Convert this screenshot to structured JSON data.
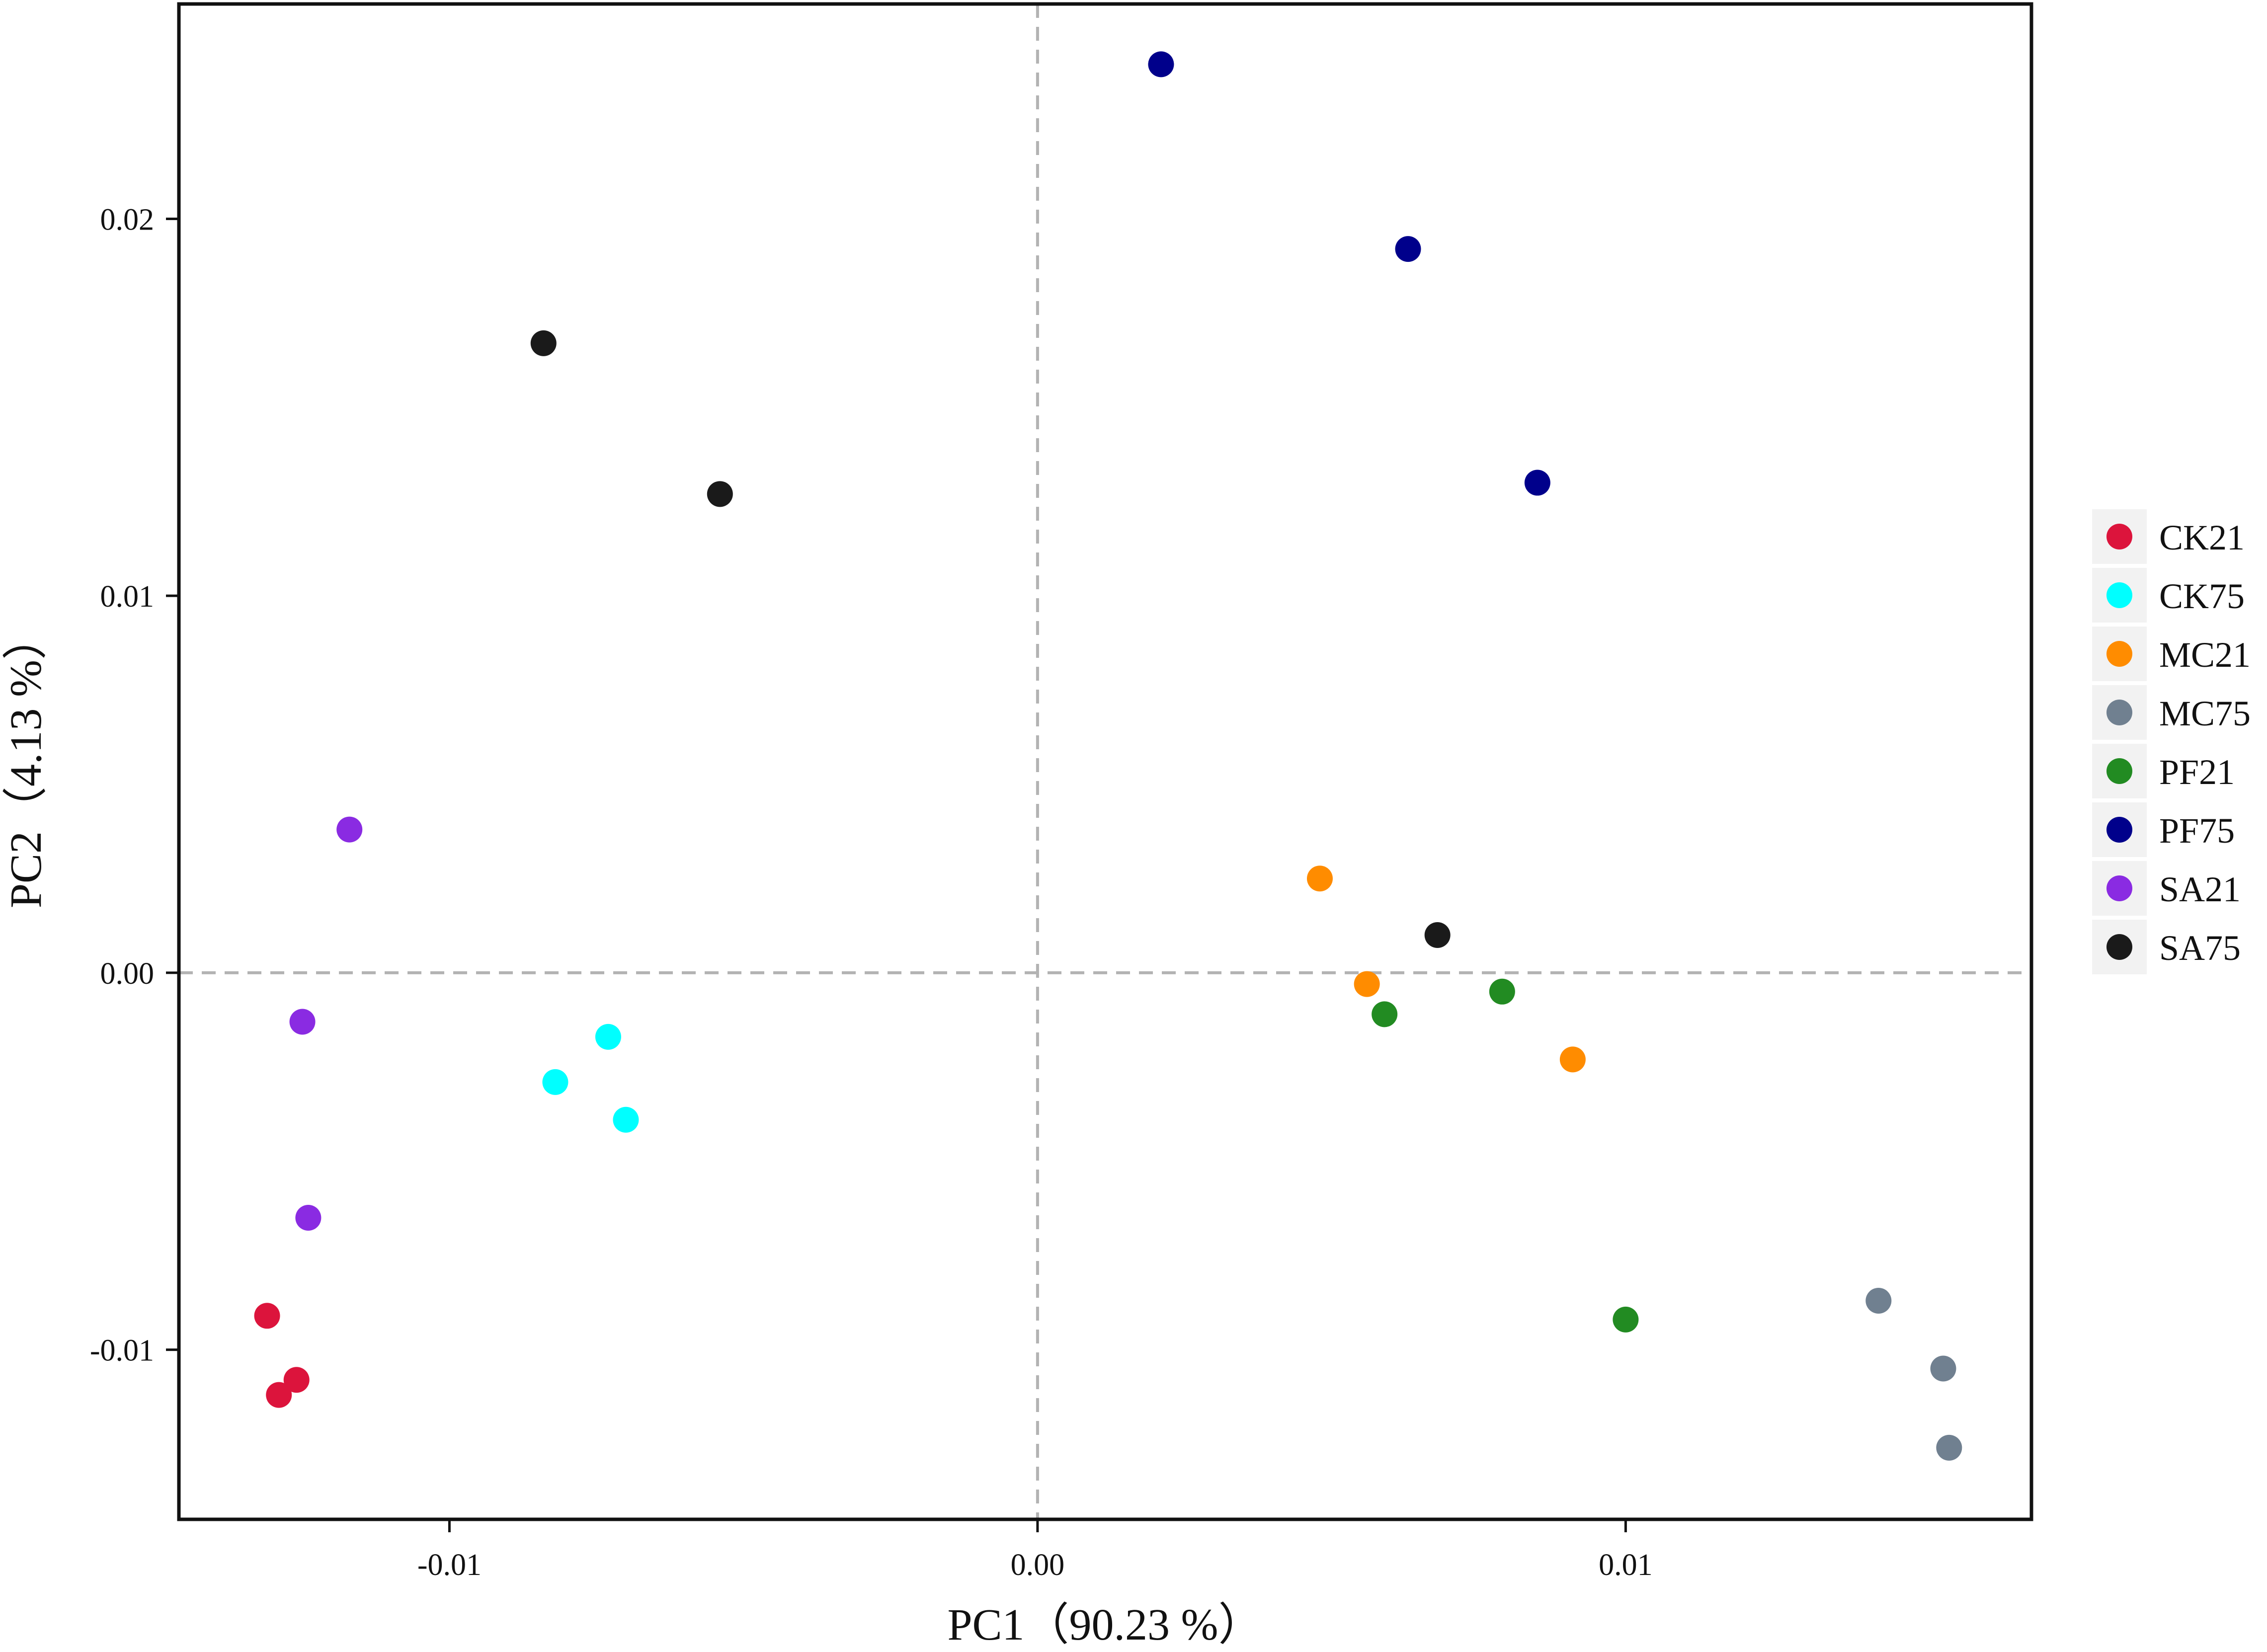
{
  "chart_data": {
    "type": "scatter",
    "title": "",
    "xlabel": "PC1（90.23 %）",
    "ylabel": "PC2（4.13 %）",
    "xlim": [
      -0.0146,
      0.0169
    ],
    "ylim": [
      -0.0145,
      0.0257
    ],
    "x_ticks": [
      -0.01,
      0.0,
      0.01
    ],
    "x_tick_labels": [
      "-0.01",
      "0.00",
      "0.01"
    ],
    "y_ticks": [
      -0.01,
      0.0,
      0.01,
      0.02
    ],
    "y_tick_labels": [
      "-0.01",
      "0.00",
      "0.01",
      "0.02"
    ],
    "reference_lines": {
      "x": 0,
      "y": 0,
      "style": "dashed"
    },
    "grid": false,
    "legend_position": "right",
    "series": [
      {
        "name": "CK21",
        "color": "#DC143C",
        "points": [
          [
            -0.0131,
            -0.0091
          ],
          [
            -0.0129,
            -0.0112
          ],
          [
            -0.0126,
            -0.0108
          ]
        ]
      },
      {
        "name": "CK75",
        "color": "#00FFFF",
        "points": [
          [
            -0.0073,
            -0.0017
          ],
          [
            -0.0082,
            -0.0029
          ],
          [
            -0.007,
            -0.0039
          ]
        ]
      },
      {
        "name": "MC21",
        "color": "#FF8C00",
        "points": [
          [
            0.0048,
            0.0025
          ],
          [
            0.0056,
            -0.0003
          ],
          [
            0.0091,
            -0.0023
          ]
        ]
      },
      {
        "name": "MC75",
        "color": "#708090",
        "points": [
          [
            0.0143,
            -0.0087
          ],
          [
            0.0154,
            -0.0105
          ],
          [
            0.0155,
            -0.0126
          ]
        ]
      },
      {
        "name": "PF21",
        "color": "#228B22",
        "points": [
          [
            0.0059,
            -0.0011
          ],
          [
            0.0079,
            -0.0005
          ],
          [
            0.01,
            -0.0092
          ]
        ]
      },
      {
        "name": "PF75",
        "color": "#00008B",
        "points": [
          [
            0.0021,
            0.0241
          ],
          [
            0.0063,
            0.0192
          ],
          [
            0.0085,
            0.013
          ]
        ]
      },
      {
        "name": "SA21",
        "color": "#8A2BE2",
        "points": [
          [
            -0.0117,
            0.0038
          ],
          [
            -0.0125,
            -0.0013
          ],
          [
            -0.0124,
            -0.0065
          ]
        ]
      },
      {
        "name": "SA75",
        "color": "#1A1A1A",
        "points": [
          [
            -0.0084,
            0.0167
          ],
          [
            -0.0054,
            0.0127
          ],
          [
            0.0068,
            0.001
          ]
        ]
      }
    ]
  }
}
